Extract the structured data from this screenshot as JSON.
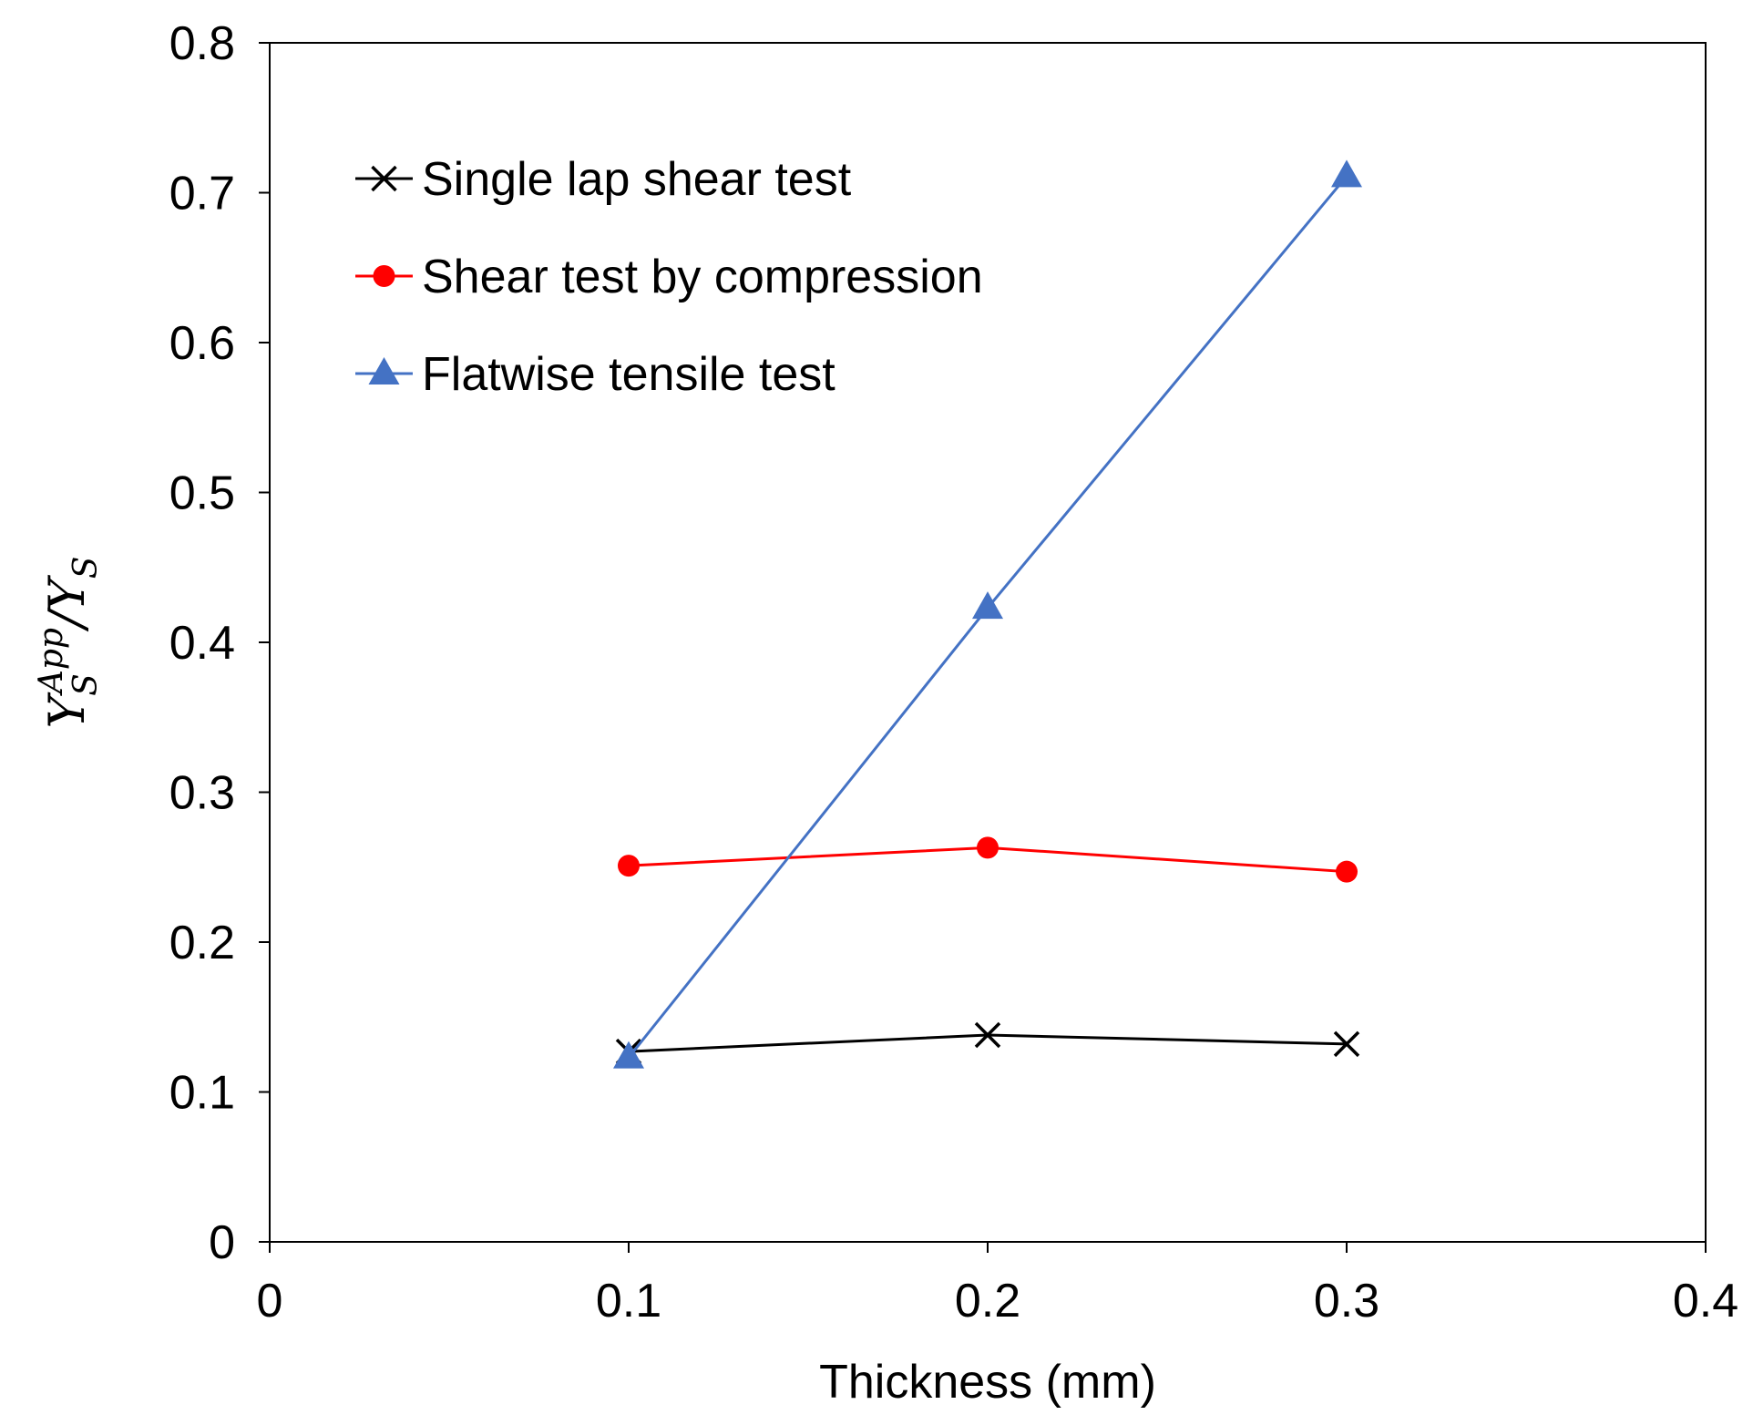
{
  "chart_data": {
    "type": "line",
    "title": "",
    "xlabel": "Thickness (mm)",
    "ylabel": "Y_S^App / Y_S",
    "ylabel_parts": {
      "main": "Y",
      "sub": "S",
      "sup": "App",
      "slash": "/",
      "main2": "Y",
      "sub2": "S"
    },
    "xlim": [
      0,
      0.4
    ],
    "ylim": [
      0,
      0.8
    ],
    "x_ticks": [
      "0",
      "0.1",
      "0.2",
      "0.3",
      "0.4"
    ],
    "y_ticks": [
      "0",
      "0.1",
      "0.2",
      "0.3",
      "0.4",
      "0.5",
      "0.6",
      "0.7",
      "0.8"
    ],
    "grid": false,
    "legend_position": "top-left",
    "x": [
      0.1,
      0.2,
      0.3
    ],
    "series": [
      {
        "name": "Single lap shear test",
        "marker": "x",
        "color": "#000000",
        "values": [
          0.127,
          0.138,
          0.132
        ]
      },
      {
        "name": "Shear test by compression",
        "marker": "circle",
        "color": "#ff0000",
        "values": [
          0.251,
          0.263,
          0.247
        ]
      },
      {
        "name": "Flatwise tensile test",
        "marker": "triangle",
        "color": "#4472c4",
        "values": [
          0.123,
          0.423,
          0.711
        ]
      }
    ]
  }
}
